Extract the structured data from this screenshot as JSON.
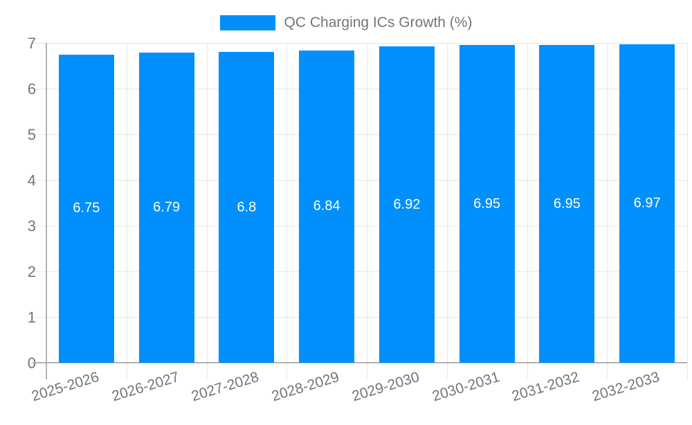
{
  "legend": {
    "label": "QC Charging ICs Growth (%)",
    "swatch_color": "#008FFB"
  },
  "chart_data": {
    "type": "bar",
    "title": "",
    "series": [
      {
        "name": "QC Charging ICs Growth (%)",
        "values": [
          6.75,
          6.79,
          6.8,
          6.84,
          6.92,
          6.95,
          6.95,
          6.97
        ],
        "data_labels": [
          "6.75",
          "6.79",
          "6.8",
          "6.84",
          "6.92",
          "6.95",
          "6.95",
          "6.97"
        ]
      }
    ],
    "categories": [
      "2025-2026",
      "2026-2027",
      "2027-2028",
      "2028-2029",
      "2029-2030",
      "2030-2031",
      "2031-2032",
      "2032-2033"
    ],
    "xlabel": "",
    "ylabel": "",
    "ylim": [
      0,
      7
    ],
    "yticks": [
      0,
      1,
      2,
      3,
      4,
      5,
      6,
      7
    ],
    "grid": true,
    "legend_position": "top",
    "bar_color": "#008FFB",
    "axis_text_color": "#757575",
    "gridline_color": "#e7e7e7",
    "axis_line_color": "#b1b1b1",
    "datalabel_color": "#ffffff"
  }
}
